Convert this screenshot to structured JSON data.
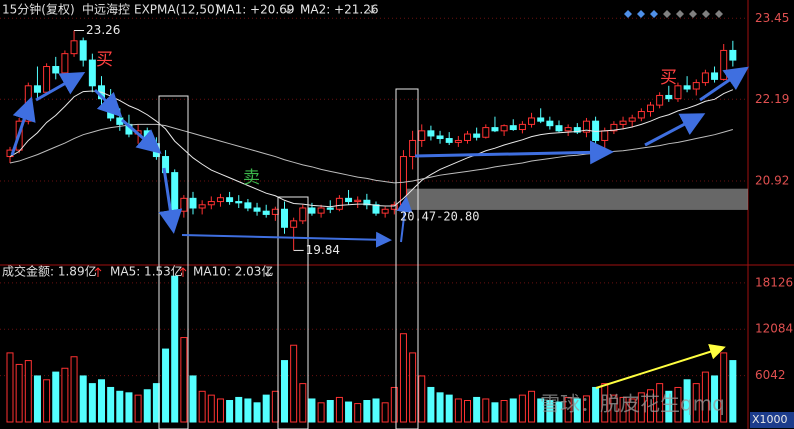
{
  "chart_data": [
    {
      "type": "candlestick",
      "title": "15分钟(复权)",
      "subtitle": "中远海控",
      "indicator": "EXPMA(12,50)",
      "open": [
        21.3,
        21.4,
        21.85,
        22.4,
        22.3,
        22.7,
        22.6,
        22.9,
        23.1,
        22.8,
        22.4,
        22.2,
        21.9,
        21.8,
        21.65,
        21.7,
        21.5,
        21.3,
        21.05,
        20.45,
        20.65,
        20.5,
        20.55,
        20.6,
        20.66,
        20.6,
        20.58,
        20.5,
        20.45,
        20.4,
        20.48,
        20.2,
        20.3,
        20.5,
        20.42,
        20.5,
        20.48,
        20.65,
        20.6,
        20.62,
        20.55,
        20.42,
        20.48,
        20.55,
        21.3,
        21.55,
        21.7,
        21.62,
        21.58,
        21.52,
        21.55,
        21.65,
        21.6,
        21.75,
        21.7,
        21.78,
        21.72,
        21.8,
        21.9,
        21.85,
        21.78,
        21.7,
        21.75,
        21.68,
        21.85,
        21.55,
        21.7,
        21.8,
        21.85,
        21.9,
        22.0,
        22.1,
        22.25,
        22.2,
        22.4,
        22.35,
        22.45,
        22.6,
        22.5,
        22.95
      ],
      "high": [
        21.45,
        21.9,
        22.45,
        22.7,
        22.75,
        22.85,
        22.95,
        23.26,
        23.15,
        22.9,
        22.55,
        22.35,
        22.05,
        21.95,
        21.8,
        21.75,
        21.6,
        21.4,
        21.1,
        20.7,
        20.75,
        20.62,
        20.68,
        20.72,
        20.75,
        20.7,
        20.64,
        20.58,
        20.55,
        20.52,
        20.6,
        20.35,
        20.55,
        20.58,
        20.55,
        20.62,
        20.7,
        20.78,
        20.68,
        20.72,
        20.6,
        20.52,
        20.6,
        21.4,
        21.7,
        21.8,
        21.78,
        21.7,
        21.68,
        21.62,
        21.7,
        21.75,
        21.8,
        21.92,
        21.8,
        21.88,
        21.85,
        21.98,
        22.05,
        21.92,
        21.86,
        21.8,
        21.82,
        21.9,
        21.92,
        21.75,
        21.85,
        21.92,
        21.95,
        22.05,
        22.15,
        22.3,
        22.4,
        22.45,
        22.55,
        22.5,
        22.65,
        22.7,
        23.05,
        23.1
      ],
      "low": [
        21.2,
        21.35,
        21.8,
        22.2,
        22.25,
        22.5,
        22.55,
        22.85,
        22.7,
        22.3,
        22.1,
        21.85,
        21.7,
        21.6,
        21.5,
        21.45,
        21.25,
        20.95,
        20.4,
        20.35,
        20.4,
        20.4,
        20.48,
        20.52,
        20.55,
        20.5,
        20.45,
        20.38,
        20.35,
        20.3,
        20.1,
        19.84,
        20.25,
        20.38,
        20.35,
        20.42,
        20.45,
        20.55,
        20.5,
        20.48,
        20.38,
        20.35,
        20.4,
        20.5,
        21.1,
        21.45,
        21.55,
        21.5,
        21.48,
        21.45,
        21.5,
        21.55,
        21.58,
        21.68,
        21.62,
        21.7,
        21.66,
        21.75,
        21.82,
        21.72,
        21.68,
        21.62,
        21.65,
        21.6,
        21.5,
        21.4,
        21.65,
        21.72,
        21.75,
        21.85,
        21.92,
        22.05,
        22.15,
        22.15,
        22.3,
        22.25,
        22.4,
        22.45,
        22.48,
        22.7
      ],
      "close": [
        21.4,
        21.85,
        22.4,
        22.3,
        22.7,
        22.6,
        22.9,
        23.1,
        22.8,
        22.4,
        22.2,
        21.9,
        21.8,
        21.65,
        21.7,
        21.5,
        21.3,
        21.05,
        20.45,
        20.65,
        20.5,
        20.55,
        20.6,
        20.66,
        20.6,
        20.58,
        20.5,
        20.45,
        20.4,
        20.48,
        20.2,
        20.3,
        20.5,
        20.42,
        20.5,
        20.48,
        20.65,
        20.6,
        20.62,
        20.55,
        20.42,
        20.48,
        20.55,
        21.3,
        21.55,
        21.7,
        21.62,
        21.58,
        21.52,
        21.55,
        21.65,
        21.6,
        21.75,
        21.7,
        21.78,
        21.72,
        21.8,
        21.9,
        21.85,
        21.78,
        21.7,
        21.75,
        21.68,
        21.85,
        21.55,
        21.7,
        21.8,
        21.85,
        21.9,
        22.0,
        22.1,
        22.25,
        22.2,
        22.4,
        22.35,
        22.45,
        22.6,
        22.5,
        22.95,
        22.8
      ],
      "series": [
        {
          "name": "MA1: +20.69",
          "color": "#e8e8e8",
          "values": [
            21.3,
            21.38,
            21.55,
            21.67,
            21.83,
            21.94,
            22.08,
            22.23,
            22.31,
            22.32,
            22.3,
            22.24,
            22.17,
            22.09,
            22.03,
            21.95,
            21.85,
            21.73,
            21.54,
            21.41,
            21.28,
            21.18,
            21.09,
            21.03,
            20.97,
            20.91,
            20.85,
            20.79,
            20.73,
            20.69,
            20.62,
            20.57,
            20.56,
            20.54,
            20.53,
            20.52,
            20.54,
            20.55,
            20.56,
            20.56,
            20.54,
            20.53,
            20.53,
            20.65,
            20.79,
            20.93,
            21.02,
            21.1,
            21.16,
            21.22,
            21.28,
            21.33,
            21.39,
            21.43,
            21.48,
            21.52,
            21.56,
            21.61,
            21.64,
            21.66,
            21.67,
            21.68,
            21.69,
            21.71,
            21.69,
            21.7,
            21.71,
            21.73,
            21.76,
            21.8,
            21.85,
            21.91,
            21.95,
            22.01,
            22.05,
            22.1,
            22.16,
            22.19,
            22.28,
            22.34
          ]
        },
        {
          "name": "MA2: +21.26",
          "color": "#bcbcbc",
          "values": [
            21.2,
            21.23,
            21.28,
            21.33,
            21.39,
            21.45,
            21.51,
            21.58,
            21.64,
            21.68,
            21.72,
            21.75,
            21.77,
            21.79,
            21.8,
            21.8,
            21.8,
            21.78,
            21.74,
            21.7,
            21.66,
            21.62,
            21.58,
            21.54,
            21.5,
            21.46,
            21.42,
            21.38,
            21.34,
            21.3,
            21.25,
            21.21,
            21.17,
            21.14,
            21.1,
            21.07,
            21.04,
            21.01,
            20.98,
            20.96,
            20.93,
            20.91,
            20.89,
            20.9,
            20.92,
            20.95,
            20.98,
            21.01,
            21.03,
            21.05,
            21.07,
            21.09,
            21.11,
            21.14,
            21.16,
            21.18,
            21.2,
            21.23,
            21.25,
            21.27,
            21.29,
            21.31,
            21.32,
            21.34,
            21.35,
            21.36,
            21.38,
            21.39,
            21.41,
            21.43,
            21.45,
            21.47,
            21.5,
            21.52,
            21.55,
            21.58,
            21.61,
            21.64,
            21.68,
            21.72
          ]
        }
      ],
      "up_color": "#ff3232",
      "down_color": "#54ffff",
      "ylim": [
        19.66,
        23.61
      ],
      "yticks": [
        20.92,
        22.19,
        23.45
      ],
      "annotations": {
        "high": "23.26",
        "low": "19.84",
        "buy": "买",
        "sell": "卖"
      },
      "band": {
        "label": "20.47-20.80",
        "from": 20.47,
        "to": 20.8
      }
    },
    {
      "type": "bar",
      "title": "成交金额: 1.89亿",
      "legend": [
        "MA5: 1.53亿",
        "MA10: 2.03亿"
      ],
      "values": [
        9000,
        7500,
        8000,
        6000,
        5500,
        6500,
        7000,
        8500,
        6000,
        5000,
        5500,
        4500,
        4000,
        3800,
        3500,
        4200,
        5000,
        9500,
        19000,
        11000,
        6000,
        4000,
        3500,
        3000,
        2800,
        3200,
        3000,
        2500,
        3500,
        4000,
        8000,
        10000,
        5000,
        3000,
        2500,
        2800,
        3200,
        2600,
        2400,
        2800,
        3000,
        2500,
        4500,
        11500,
        9000,
        6000,
        4500,
        3800,
        3500,
        3000,
        2800,
        3200,
        3000,
        2500,
        2800,
        3000,
        3500,
        4000,
        3000,
        2800,
        2600,
        3200,
        3000,
        3400,
        4500,
        5000,
        3500,
        3200,
        3000,
        3800,
        4200,
        5000,
        4000,
        4500,
        5500,
        5000,
        6500,
        6000,
        9000,
        8000
      ],
      "ylim": [
        0,
        19800
      ],
      "yticks": [
        6042,
        12084,
        18126
      ],
      "unit_label": "X1000",
      "watermark": "雪球：脱皮花生qmq"
    }
  ]
}
